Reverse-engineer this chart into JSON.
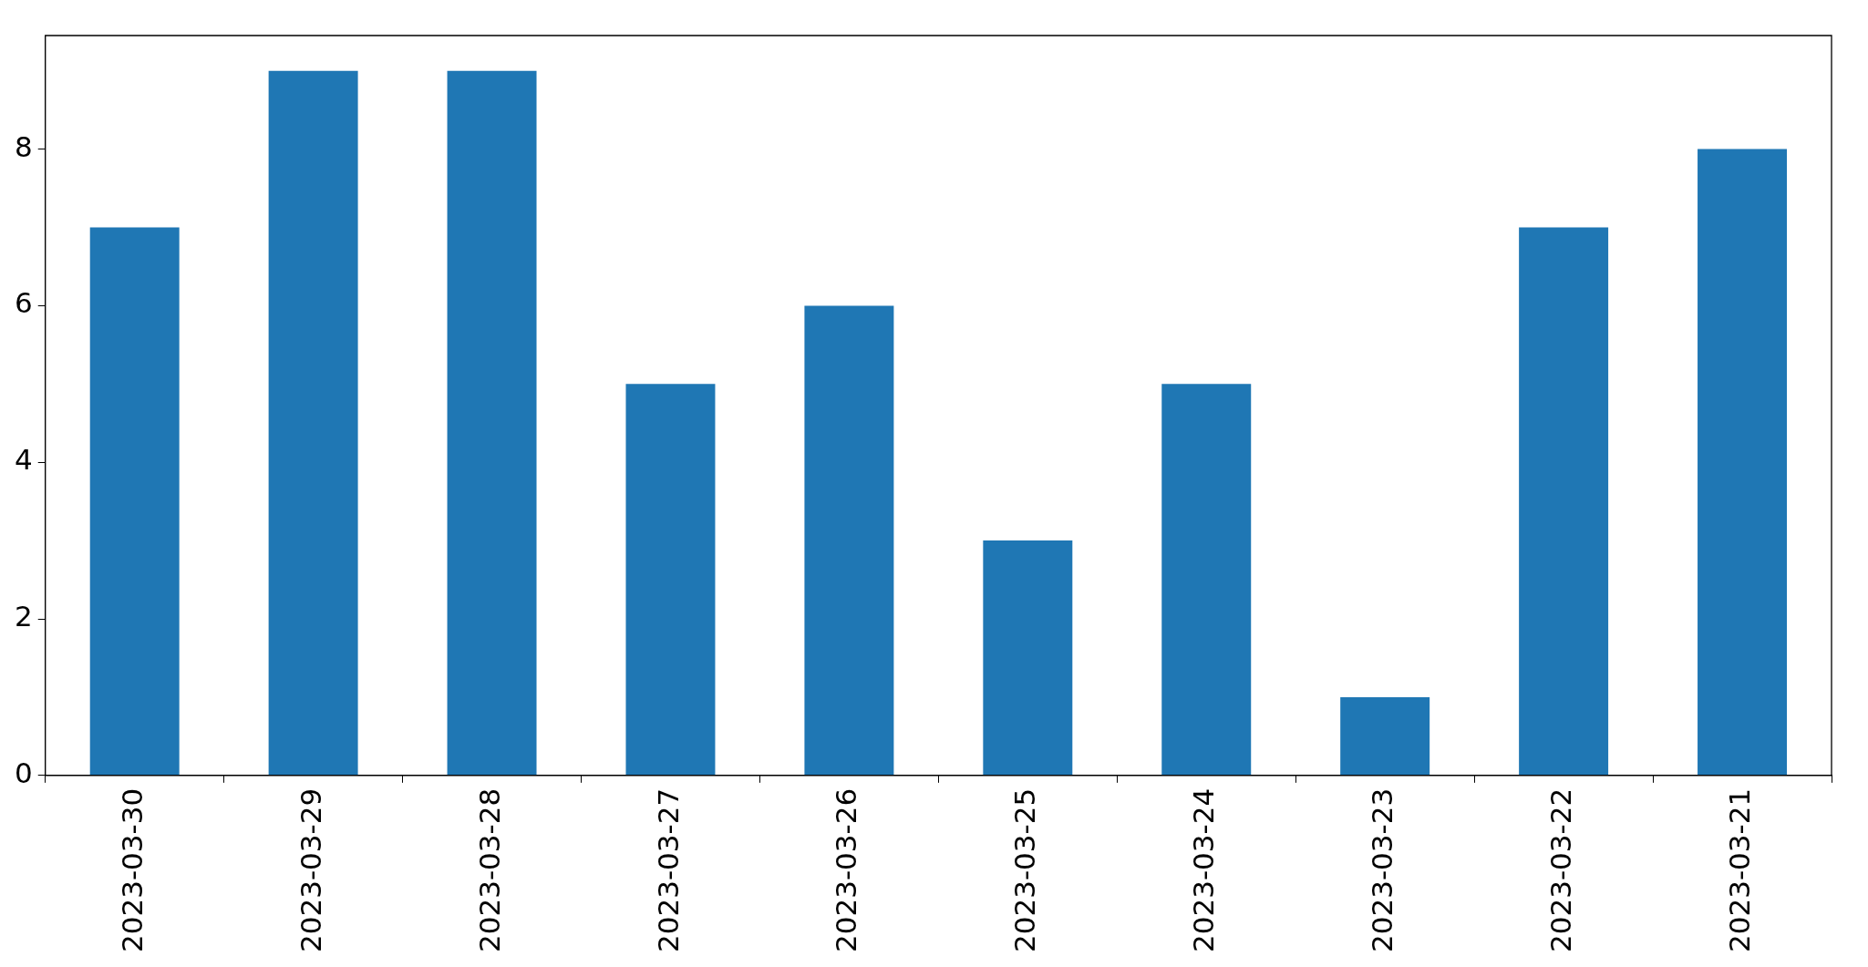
{
  "chart_data": {
    "type": "bar",
    "categories": [
      "2023-03-30",
      "2023-03-29",
      "2023-03-28",
      "2023-03-27",
      "2023-03-26",
      "2023-03-25",
      "2023-03-24",
      "2023-03-23",
      "2023-03-22",
      "2023-03-21"
    ],
    "values": [
      7,
      9,
      9,
      5,
      6,
      3,
      5,
      1,
      7,
      8
    ],
    "color": "#1f77b4",
    "ylim": [
      0,
      9.45
    ],
    "yticks": [
      0,
      2,
      4,
      6,
      8
    ],
    "grid": false,
    "legend": false
  }
}
